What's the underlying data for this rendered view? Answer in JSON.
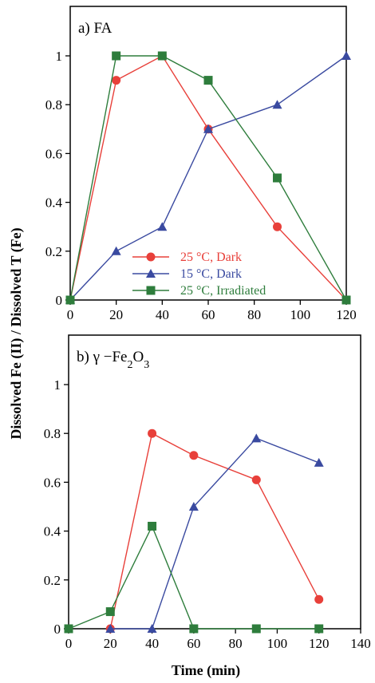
{
  "ylabel": "Dissolved Fe (II) / Dissolved T (Fe)",
  "xlabel": "Time (min)",
  "colors": {
    "red": "#e8403a",
    "blue": "#3a4aa0",
    "green": "#2e7d3c"
  },
  "chart_data": [
    {
      "type": "line",
      "panel_label": "a) FA",
      "xlim": [
        0,
        120
      ],
      "ylim": [
        0,
        1
      ],
      "x_ticks": [
        0,
        20,
        40,
        60,
        80,
        100,
        120
      ],
      "y_ticks": [
        "0",
        "0.2",
        "0.4",
        "0.6",
        "0.8",
        "1"
      ],
      "legend_position": "center",
      "series": [
        {
          "name": "25 °C, Dark",
          "color": "#e8403a",
          "marker": "circle",
          "x": [
            0,
            20,
            40,
            60,
            90,
            120
          ],
          "y": [
            0,
            0.9,
            1.0,
            0.7,
            0.3,
            0
          ]
        },
        {
          "name": "15 °C, Dark",
          "color": "#3a4aa0",
          "marker": "triangle",
          "x": [
            0,
            20,
            40,
            60,
            90,
            120
          ],
          "y": [
            0,
            0.2,
            0.3,
            0.7,
            0.8,
            1.0
          ]
        },
        {
          "name": "25 °C, Irradiated",
          "color": "#2e7d3c",
          "marker": "square",
          "x": [
            0,
            20,
            40,
            60,
            90,
            120
          ],
          "y": [
            0,
            1.0,
            1.0,
            0.9,
            0.5,
            0
          ]
        }
      ]
    },
    {
      "type": "line",
      "panel_label": "b) γ −Fe₂O₃",
      "xlim": [
        0,
        140
      ],
      "ylim": [
        0,
        1
      ],
      "x_ticks": [
        0,
        20,
        40,
        60,
        80,
        100,
        120,
        140
      ],
      "y_ticks": [
        "0",
        "0.2",
        "0.4",
        "0.6",
        "0.8",
        "1"
      ],
      "series": [
        {
          "name": "25 °C, Dark",
          "color": "#e8403a",
          "marker": "circle",
          "x": [
            20,
            40,
            60,
            90,
            120
          ],
          "y": [
            0,
            0.8,
            0.71,
            0.61,
            0.12
          ]
        },
        {
          "name": "15 °C, Dark",
          "color": "#3a4aa0",
          "marker": "triangle",
          "x": [
            20,
            40,
            60,
            90,
            120
          ],
          "y": [
            0,
            0,
            0.5,
            0.78,
            0.68
          ]
        },
        {
          "name": "25 °C, Irradiated",
          "color": "#2e7d3c",
          "marker": "square",
          "x": [
            0,
            20,
            40,
            60,
            90,
            120
          ],
          "y": [
            0,
            0.07,
            0.42,
            0,
            0,
            0
          ]
        }
      ]
    }
  ]
}
